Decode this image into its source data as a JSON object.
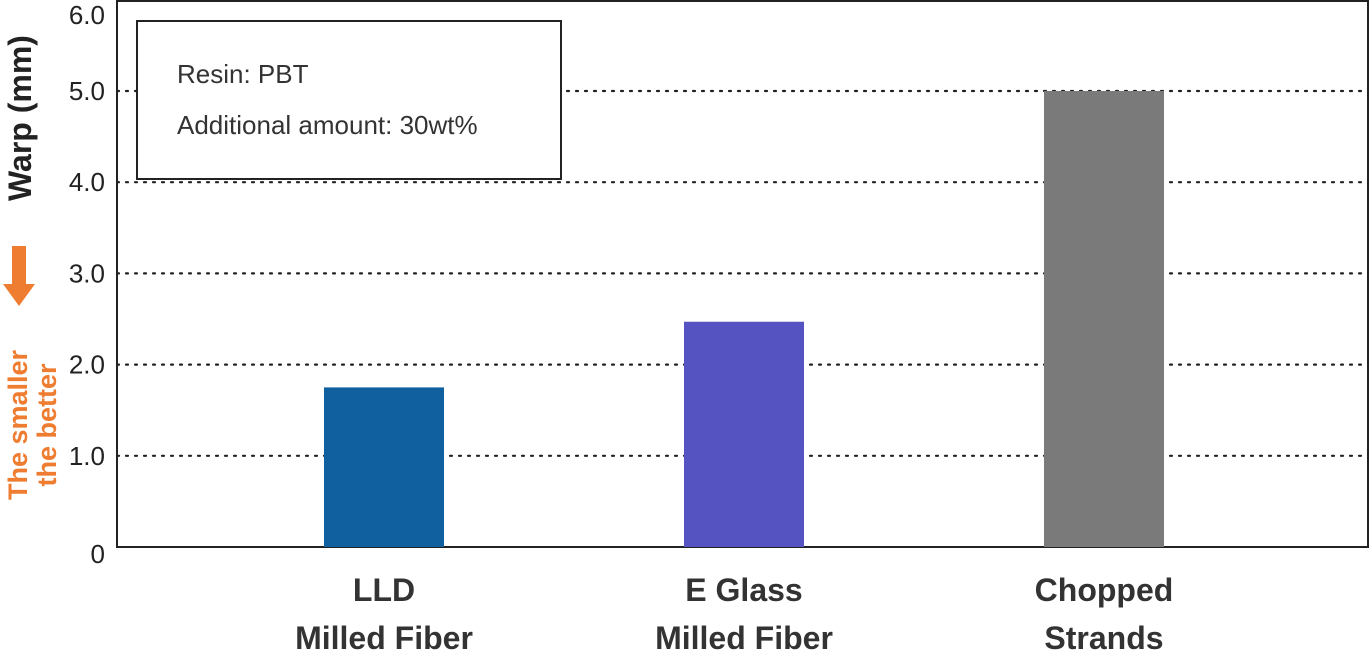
{
  "chart_data": {
    "type": "bar",
    "categories": [
      [
        "LLD",
        "Milled Fiber"
      ],
      [
        "E Glass",
        "Milled Fiber"
      ],
      [
        "Chopped",
        "Strands"
      ]
    ],
    "values": [
      1.75,
      2.47,
      5.0
    ],
    "colors": [
      "#1060a0",
      "#5553c2",
      "#7a7a7a"
    ],
    "ylabel": "Warp (mm)",
    "ylim": [
      0,
      6.0
    ],
    "yticks": [
      "0",
      "1.0",
      "2.0",
      "3.0",
      "4.0",
      "5.0",
      "6.0"
    ],
    "grid": "dotted horizontal",
    "annotation": {
      "line1": "Resin: PBT",
      "line2": "Additional amount: 30wt%"
    },
    "direction_note": {
      "line1": "The smaller",
      "line2": "the better",
      "color": "#ee7d31",
      "icon": "down-arrow-icon"
    }
  }
}
